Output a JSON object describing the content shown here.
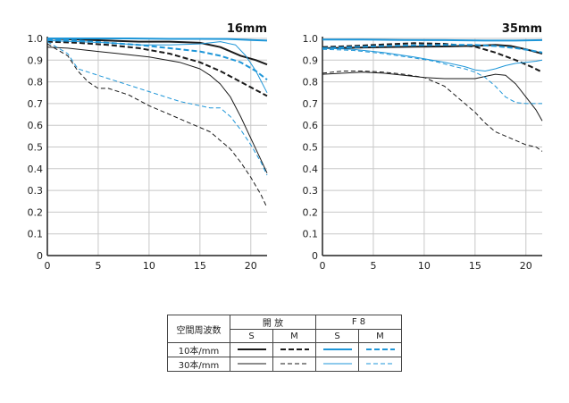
{
  "colors": {
    "black": "#1a1a1a",
    "blue": "#1e96d8"
  },
  "chart_data": [
    {
      "type": "line",
      "title": "16mm",
      "xlim": [
        0,
        21.6
      ],
      "ylim": [
        0,
        1.0
      ],
      "xticks": [
        "0",
        "5",
        "10",
        "15",
        "20"
      ],
      "yticks": [
        "0",
        "0.1",
        "0.2",
        "0.3",
        "0.4",
        "0.5",
        "0.6",
        "0.7",
        "0.8",
        "0.9",
        "1.0"
      ],
      "grid": true,
      "series": [
        {
          "name": "開放 10本/mm S",
          "color": "#1a1a1a",
          "width": 2,
          "dash": "",
          "x": [
            0,
            3,
            6,
            9,
            12,
            15,
            17,
            19,
            20.5,
            21.6
          ],
          "y": [
            1.0,
            0.995,
            0.99,
            0.985,
            0.985,
            0.98,
            0.96,
            0.92,
            0.9,
            0.88
          ]
        },
        {
          "name": "開放 10本/mm M",
          "color": "#1a1a1a",
          "width": 2,
          "dash": "6,3",
          "x": [
            0,
            3,
            6,
            9,
            12,
            15,
            17,
            19,
            21.6
          ],
          "y": [
            0.985,
            0.98,
            0.97,
            0.955,
            0.93,
            0.89,
            0.85,
            0.8,
            0.735
          ]
        },
        {
          "name": "開放 30本/mm S",
          "color": "#1a1a1a",
          "width": 1,
          "dash": "",
          "x": [
            0,
            2,
            5,
            8,
            10,
            13,
            15,
            16,
            17,
            18,
            19,
            20,
            21,
            21.6
          ],
          "y": [
            0.96,
            0.955,
            0.94,
            0.925,
            0.915,
            0.89,
            0.86,
            0.83,
            0.79,
            0.73,
            0.64,
            0.54,
            0.44,
            0.38
          ]
        },
        {
          "name": "開放 30本/mm M",
          "color": "#1a1a1a",
          "width": 1,
          "dash": "5,3",
          "x": [
            0,
            2,
            3,
            4,
            5,
            6,
            8,
            10,
            12,
            14,
            16,
            17,
            18,
            19,
            20,
            21,
            21.6
          ],
          "y": [
            0.975,
            0.92,
            0.85,
            0.8,
            0.77,
            0.77,
            0.74,
            0.69,
            0.65,
            0.61,
            0.57,
            0.53,
            0.49,
            0.43,
            0.36,
            0.28,
            0.22
          ]
        },
        {
          "name": "F8 10本/mm S",
          "color": "#1e96d8",
          "width": 2,
          "dash": "",
          "x": [
            0,
            4,
            8,
            12,
            15,
            18,
            20,
            21.6
          ],
          "y": [
            1.0,
            1.0,
            1.0,
            0.998,
            0.998,
            0.997,
            0.993,
            0.99
          ]
        },
        {
          "name": "F8 10本/mm M",
          "color": "#1e96d8",
          "width": 2,
          "dash": "6,3",
          "x": [
            0,
            3,
            6,
            9,
            12,
            15,
            17,
            19,
            20.5,
            21.6
          ],
          "y": [
            0.995,
            0.99,
            0.98,
            0.97,
            0.955,
            0.94,
            0.92,
            0.89,
            0.85,
            0.81
          ]
        },
        {
          "name": "F8 30本/mm S",
          "color": "#1e96d8",
          "width": 1,
          "dash": "",
          "x": [
            0,
            3,
            6,
            9,
            12,
            15,
            17,
            18.5,
            19.5,
            20.5,
            21.6
          ],
          "y": [
            0.99,
            0.985,
            0.98,
            0.97,
            0.97,
            0.975,
            0.985,
            0.97,
            0.92,
            0.85,
            0.75
          ]
        },
        {
          "name": "F8 30本/mm M",
          "color": "#1e96d8",
          "width": 1,
          "dash": "5,3",
          "x": [
            0,
            2,
            3,
            5,
            7,
            9,
            11,
            13,
            15,
            16,
            17,
            18,
            19,
            20,
            21,
            21.6
          ],
          "y": [
            0.985,
            0.93,
            0.86,
            0.83,
            0.8,
            0.77,
            0.74,
            0.71,
            0.69,
            0.68,
            0.68,
            0.64,
            0.58,
            0.51,
            0.43,
            0.37
          ]
        }
      ]
    },
    {
      "type": "line",
      "title": "35mm",
      "xlim": [
        0,
        21.6
      ],
      "ylim": [
        0,
        1.0
      ],
      "xticks": [
        "0",
        "5",
        "10",
        "15",
        "20"
      ],
      "yticks": [
        "0",
        "0.1",
        "0.2",
        "0.3",
        "0.4",
        "0.5",
        "0.6",
        "0.7",
        "0.8",
        "0.9",
        "1.0"
      ],
      "grid": true,
      "series": [
        {
          "name": "開放 10本/mm S",
          "color": "#1a1a1a",
          "width": 2,
          "dash": "",
          "x": [
            0,
            3,
            6,
            9,
            12,
            15,
            17,
            18.5,
            20,
            21.6
          ],
          "y": [
            0.955,
            0.957,
            0.96,
            0.962,
            0.963,
            0.966,
            0.97,
            0.965,
            0.95,
            0.93
          ]
        },
        {
          "name": "開放 10本/mm M",
          "color": "#1a1a1a",
          "width": 2,
          "dash": "6,3",
          "x": [
            0,
            3,
            6,
            9,
            12,
            15,
            17,
            19,
            20.5,
            21.6
          ],
          "y": [
            0.96,
            0.965,
            0.972,
            0.978,
            0.975,
            0.962,
            0.935,
            0.9,
            0.87,
            0.845
          ]
        },
        {
          "name": "開放 30本/mm S",
          "color": "#1a1a1a",
          "width": 1,
          "dash": "",
          "x": [
            0,
            2,
            4,
            6,
            8,
            10,
            12,
            14,
            15,
            16,
            17,
            18,
            19,
            20,
            21,
            21.6
          ],
          "y": [
            0.835,
            0.84,
            0.845,
            0.84,
            0.83,
            0.82,
            0.815,
            0.815,
            0.815,
            0.825,
            0.835,
            0.83,
            0.79,
            0.73,
            0.67,
            0.62
          ]
        },
        {
          "name": "開放 30本/mm M",
          "color": "#1a1a1a",
          "width": 1,
          "dash": "5,3",
          "x": [
            0,
            2,
            4,
            6,
            8,
            10,
            12,
            13,
            14,
            15,
            16,
            17,
            18,
            19,
            20,
            21,
            21.6
          ],
          "y": [
            0.84,
            0.85,
            0.85,
            0.845,
            0.835,
            0.82,
            0.78,
            0.74,
            0.7,
            0.66,
            0.61,
            0.57,
            0.55,
            0.53,
            0.51,
            0.5,
            0.48
          ]
        },
        {
          "name": "F8 10本/mm S",
          "color": "#1e96d8",
          "width": 2,
          "dash": "",
          "x": [
            0,
            4,
            8,
            12,
            16,
            19,
            21.6
          ],
          "y": [
            0.995,
            0.995,
            0.993,
            0.992,
            0.99,
            0.99,
            0.992
          ]
        },
        {
          "name": "F8 10本/mm M",
          "color": "#1e96d8",
          "width": 2,
          "dash": "6,3",
          "x": [
            0,
            3,
            6,
            9,
            12,
            15,
            17,
            19,
            20.5,
            21.6
          ],
          "y": [
            0.955,
            0.96,
            0.965,
            0.968,
            0.97,
            0.97,
            0.965,
            0.955,
            0.945,
            0.935
          ]
        },
        {
          "name": "F8 30本/mm S",
          "color": "#1e96d8",
          "width": 1,
          "dash": "",
          "x": [
            0,
            3,
            6,
            9,
            12,
            14,
            15,
            16,
            17,
            18,
            19,
            20,
            21,
            21.6
          ],
          "y": [
            0.955,
            0.95,
            0.935,
            0.915,
            0.89,
            0.87,
            0.855,
            0.85,
            0.86,
            0.875,
            0.885,
            0.89,
            0.895,
            0.9
          ]
        },
        {
          "name": "F8 30本/mm M",
          "color": "#1e96d8",
          "width": 1,
          "dash": "5,3",
          "x": [
            0,
            3,
            6,
            9,
            11,
            13,
            14,
            15,
            16,
            17,
            18,
            19,
            20,
            21,
            21.6
          ],
          "y": [
            0.95,
            0.945,
            0.93,
            0.91,
            0.895,
            0.87,
            0.86,
            0.845,
            0.82,
            0.78,
            0.73,
            0.705,
            0.7,
            0.7,
            0.7
          ]
        }
      ]
    }
  ],
  "legend": {
    "header": "空間周波数",
    "aperture_open": "開 放",
    "aperture_f8": "F 8",
    "sagittal": "S",
    "meridional": "M",
    "row_10": "10本/mm",
    "row_30": "30本/mm"
  }
}
